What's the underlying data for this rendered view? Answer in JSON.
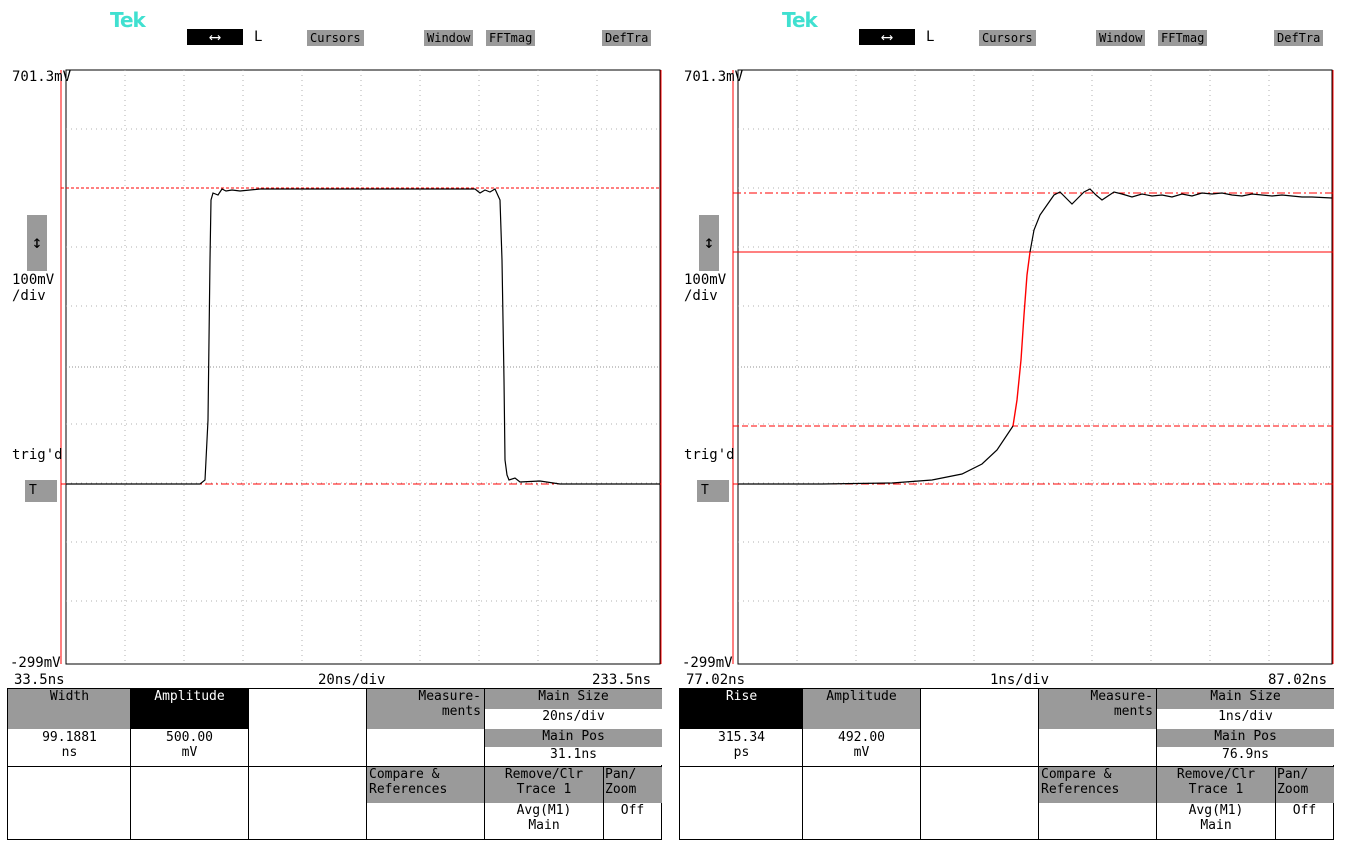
{
  "left": {
    "logo": "Tek",
    "arrow": "⟷",
    "mode": "L",
    "top_buttons": [
      "Cursors",
      "Window",
      "FFTmag",
      "DefTra"
    ],
    "y_top": "701.3mV",
    "y_scale": "100mV",
    "y_scale_unit": "/div",
    "y_bottom": "-299mV",
    "trig": "trig'd",
    "trig_button": "T",
    "x_left": "33.5ns",
    "x_mid": "20ns/div",
    "x_right": "233.5ns",
    "meas": {
      "m1_label": "Width",
      "m1_value": "99.1881",
      "m1_unit": "ns",
      "m2_label": "Amplitude",
      "m2_value": "500.00",
      "m2_unit": "mV",
      "measurements": [
        "Measure-",
        "ments"
      ],
      "main_size_label": "Main Size",
      "main_size_value": "20ns/div",
      "main_pos_label": "Main Pos",
      "main_pos_value": "31.1ns",
      "compare": [
        "Compare &",
        "References"
      ],
      "remove": [
        "Remove/Clr",
        "Trace 1"
      ],
      "avg": [
        "Avg(M1)",
        "Main"
      ],
      "pan": [
        "Pan/",
        "Zoom"
      ],
      "pan_value": "Off"
    }
  },
  "right": {
    "logo": "Tek",
    "arrow": "⟷",
    "mode": "L",
    "top_buttons": [
      "Cursors",
      "Window",
      "FFTmag",
      "DefTra"
    ],
    "y_top": "701.3mV",
    "y_scale": "100mV",
    "y_scale_unit": "/div",
    "y_bottom": "-299mV",
    "trig": "trig'd",
    "trig_button": "T",
    "x_left": "77.02ns",
    "x_mid": "1ns/div",
    "x_right": "87.02ns",
    "meas": {
      "m1_label": "Rise",
      "m1_value": "315.34",
      "m1_unit": "ps",
      "m2_label": "Amplitude",
      "m2_value": "492.00",
      "m2_unit": "mV",
      "measurements": [
        "Measure-",
        "ments"
      ],
      "main_size_label": "Main Size",
      "main_size_value": "1ns/div",
      "main_pos_label": "Main Pos",
      "main_pos_value": "76.9ns",
      "compare": [
        "Compare &",
        "References"
      ],
      "remove": [
        "Remove/Clr",
        "Trace 1"
      ],
      "avg": [
        "Avg(M1)",
        "Main"
      ],
      "pan": [
        "Pan/",
        "Zoom"
      ],
      "pan_value": "Off"
    }
  },
  "colors": {
    "trace": "#000000",
    "cursor": "#ff0000",
    "grid": "#b0b0b0",
    "button": "#9a9a9a",
    "logo": "#40e0d0"
  }
}
